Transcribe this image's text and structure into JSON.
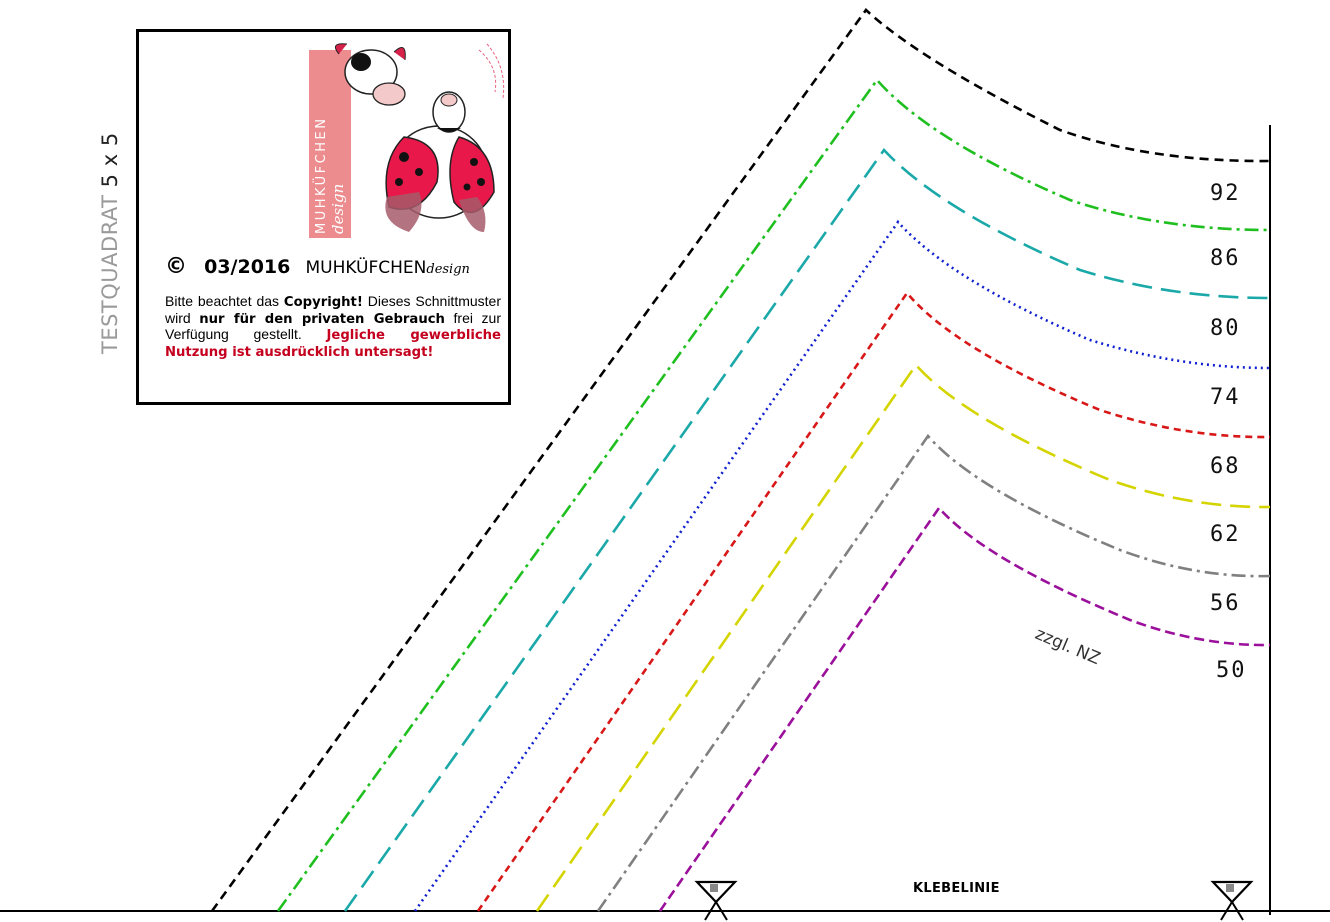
{
  "test_square": {
    "label": "TESTQUADRAT",
    "size": "5 x 5"
  },
  "copyright": {
    "symbol": "©",
    "date": "03/2016",
    "brand": "MUHKÜFCHEN",
    "design": "design",
    "notice_1": "Bitte beachtet das",
    "notice_copyright": "Copyright!",
    "notice_2": "Dieses Schnittmuster wird",
    "notice_private": "nur für den privaten Gebrauch",
    "notice_3": "frei zur Verfügung gestellt.",
    "notice_red": "Jegliche gewerbliche Nutzung ist ausdrücklich untersagt!"
  },
  "logo": {
    "vertical_brand": "MUHKÜFCHEN",
    "vertical_design": "design"
  },
  "sizes": [
    {
      "label": "92",
      "color": "#000000"
    },
    {
      "label": "86",
      "color": "#1fbf1f"
    },
    {
      "label": "80",
      "color": "#1aa8a8"
    },
    {
      "label": "74",
      "color": "#1020d0"
    },
    {
      "label": "68",
      "color": "#d81818"
    },
    {
      "label": "62",
      "color": "#d4d400"
    },
    {
      "label": "56",
      "color": "#808080"
    },
    {
      "label": "50",
      "color": "#9b109b"
    }
  ],
  "annotations": {
    "seam_allowance": "zzgl. NZ",
    "glue_line": "KLEBELINIE"
  }
}
